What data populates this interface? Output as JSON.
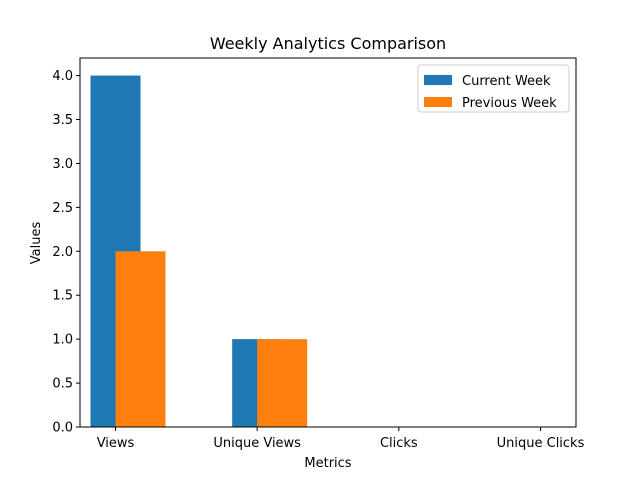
{
  "chart_data": {
    "type": "bar",
    "title": "Weekly Analytics Comparison",
    "xlabel": "Metrics",
    "ylabel": "Values",
    "categories": [
      "Views",
      "Unique Views",
      "Clicks",
      "Unique Clicks"
    ],
    "series": [
      {
        "name": "Current Week",
        "values": [
          4,
          1,
          0,
          0
        ],
        "color": "#1f77b4"
      },
      {
        "name": "Previous Week",
        "values": [
          2,
          1,
          0,
          0
        ],
        "color": "#ff7f0e"
      }
    ],
    "ylim": [
      0,
      4.2
    ],
    "yticks": [
      "0.0",
      "0.5",
      "1.0",
      "1.5",
      "2.0",
      "2.5",
      "3.0",
      "3.5",
      "4.0"
    ],
    "grid": false,
    "legend": "top-right"
  }
}
